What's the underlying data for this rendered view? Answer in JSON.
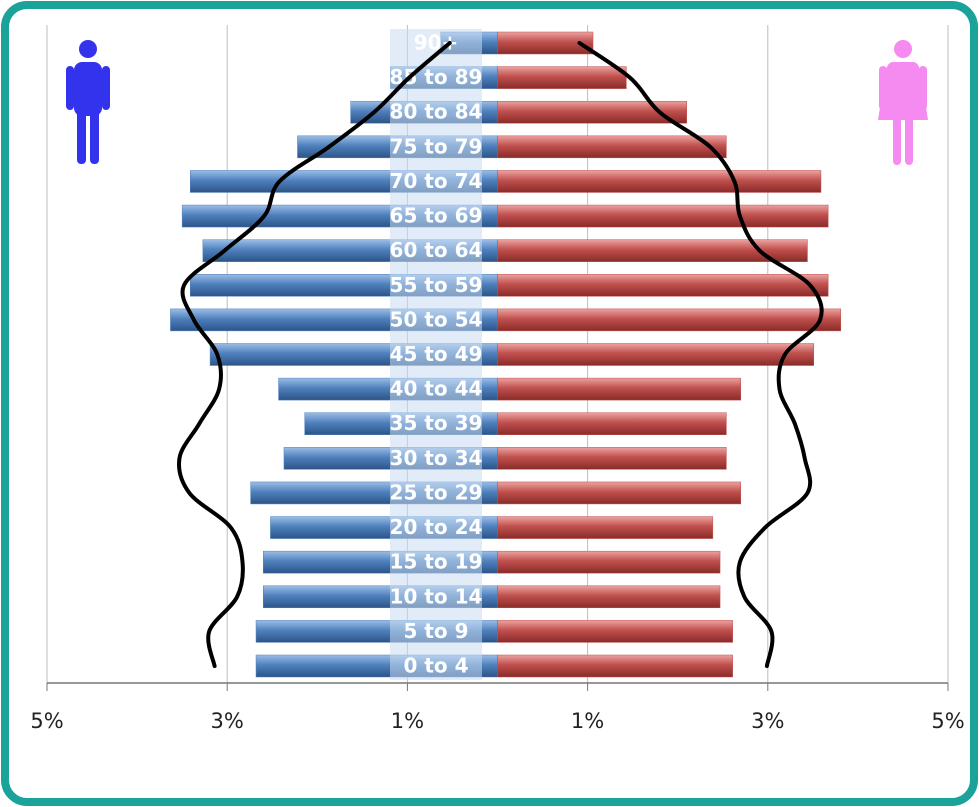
{
  "chart_data": {
    "type": "bar",
    "orientation": "horizontal",
    "categories": [
      "0 to 4",
      "5 to 9",
      "10 to 14",
      "15 to 19",
      "20 to 24",
      "25 to 29",
      "30 to 34",
      "35 to 39",
      "40 to 44",
      "45 to 49",
      "50 to 54",
      "55 to 59",
      "60 to 64",
      "65 to 69",
      "70 to 74",
      "75 to 79",
      "80 to 84",
      "85 to 89",
      "90+"
    ],
    "series": [
      {
        "type": "bar",
        "color": "#4f81bd",
        "values": [
          -2.68,
          -2.68,
          -2.6,
          -2.6,
          -2.52,
          -2.74,
          -2.37,
          -2.14,
          -2.43,
          -3.19,
          -3.63,
          -3.41,
          -3.27,
          -3.5,
          -3.41,
          -2.22,
          -1.63,
          -1.19,
          -0.63
        ]
      },
      {
        "type": "bar",
        "color": "#c0504d",
        "values": [
          2.61,
          2.61,
          2.47,
          2.47,
          2.39,
          2.7,
          2.54,
          2.54,
          2.7,
          3.51,
          3.81,
          3.67,
          3.44,
          3.67,
          3.59,
          2.54,
          2.1,
          1.43,
          1.06
        ]
      },
      {
        "type": "line",
        "color": "#000000",
        "values": [
          -3.14,
          -3.2,
          -2.89,
          -2.83,
          -2.96,
          -3.42,
          -3.53,
          -3.31,
          -3.09,
          -3.11,
          -3.37,
          -3.48,
          -3.03,
          -2.59,
          -2.42,
          -1.87,
          -1.37,
          -0.98,
          -0.53
        ]
      },
      {
        "type": "line",
        "color": "#000000",
        "values": [
          2.99,
          3.04,
          2.74,
          2.69,
          2.97,
          3.44,
          3.41,
          3.3,
          3.13,
          3.19,
          3.58,
          3.47,
          2.91,
          2.69,
          2.63,
          2.36,
          1.8,
          1.47,
          0.91
        ]
      }
    ],
    "xlim": [
      -5,
      5
    ],
    "xticks": [
      {
        "value": -5,
        "label": "5%"
      },
      {
        "value": -3,
        "label": "3%"
      },
      {
        "value": -1,
        "label": "1%"
      },
      {
        "value": 1,
        "label": "1%"
      },
      {
        "value": 3,
        "label": "3%"
      },
      {
        "value": 5,
        "label": "5%"
      }
    ],
    "grid": true
  }
}
